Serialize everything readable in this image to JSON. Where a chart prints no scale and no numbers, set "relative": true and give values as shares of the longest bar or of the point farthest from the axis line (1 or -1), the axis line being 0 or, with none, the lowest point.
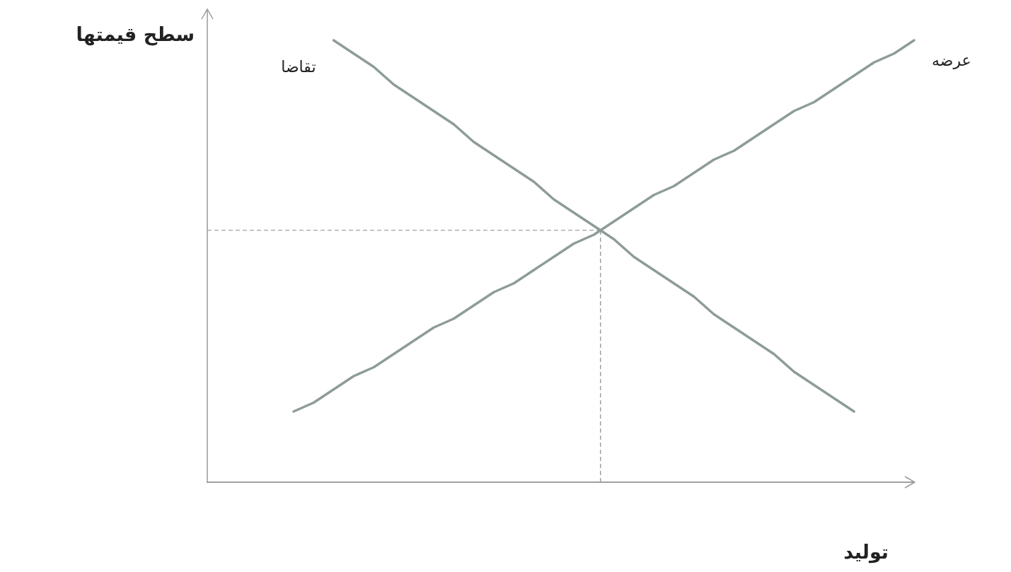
{
  "chart_data": {
    "type": "line",
    "relative": true,
    "ylabel": "سطح قیمتها",
    "xlabel": "تولید",
    "marker": "none",
    "line_style": "solid",
    "categories": [
      null,
      null,
      null,
      null,
      null,
      null,
      null,
      null,
      null,
      null,
      null,
      null,
      null,
      null,
      null,
      null,
      null,
      null,
      null,
      null,
      null,
      null,
      null,
      null,
      null,
      null,
      null,
      null,
      null,
      null,
      null,
      null
    ],
    "series": [
      {
        "name": "تقاضا",
        "color": "#8e9c96",
        "values": [
          null,
          null,
          1,
          0.97,
          0.94,
          0.9,
          0.87,
          0.84,
          0.81,
          0.77,
          0.74,
          0.71,
          0.68,
          0.64,
          0.61,
          0.58,
          0.55,
          0.51,
          0.48,
          0.45,
          0.42,
          0.38,
          0.35,
          0.32,
          0.29,
          0.25,
          0.22,
          0.19,
          0.16,
          null,
          null,
          null
        ]
      },
      {
        "name": "عرضه",
        "color": "#8e9c96",
        "values": [
          0.16,
          0.18,
          0.21,
          0.24,
          0.26,
          0.29,
          0.32,
          0.35,
          0.37,
          0.4,
          0.43,
          0.45,
          0.48,
          0.51,
          0.54,
          0.56,
          0.59,
          0.62,
          0.65,
          0.67,
          0.7,
          0.73,
          0.75,
          0.78,
          0.81,
          0.84,
          0.86,
          0.89,
          0.92,
          0.95,
          0.97,
          1
        ]
      }
    ],
    "ref_lines": [
      {
        "axis": "y",
        "value": 0.57,
        "color": "#8a8a8a",
        "line_style": "dashed"
      }
    ]
  }
}
